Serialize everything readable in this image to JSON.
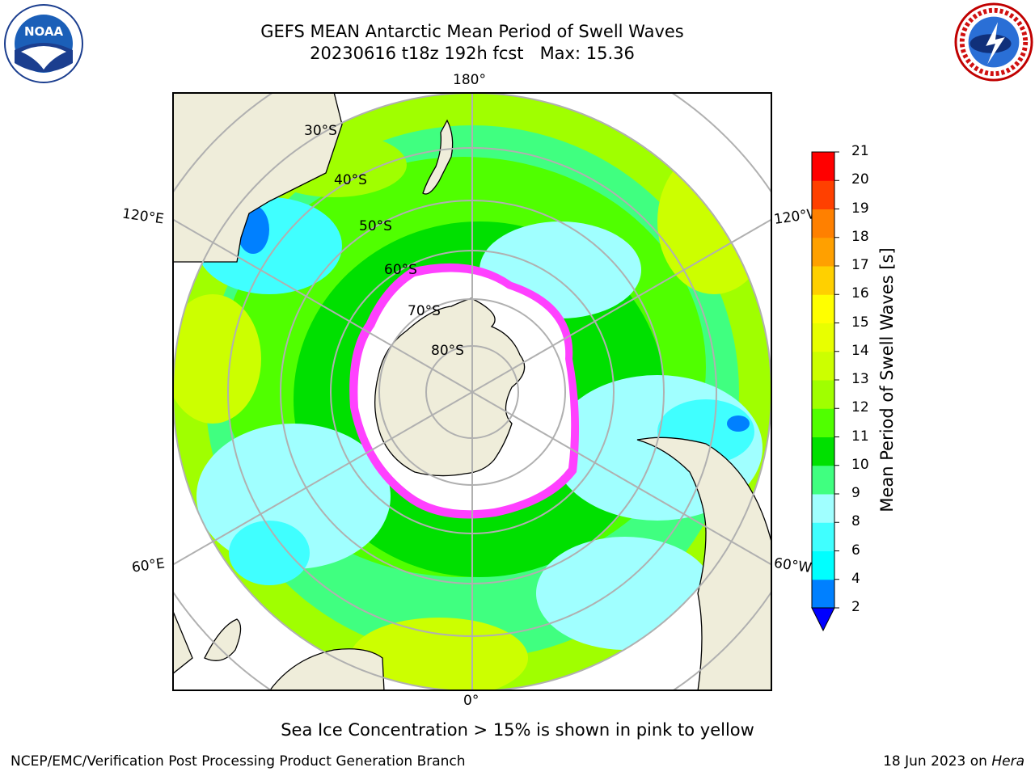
{
  "title_line1": "GEFS MEAN Antarctic Mean Period of Swell Waves",
  "title_line2": "20230616 t18z 192h fcst   Max: 15.36",
  "logos": {
    "left": "noaa-logo",
    "right": "nws-logo"
  },
  "map": {
    "projection": "south polar stereographic",
    "longitude_labels": {
      "top": "180°",
      "bottom": "0°",
      "left_upper": "120°E",
      "left_lower": "60°E",
      "right_upper": "120°W",
      "right_lower": "60°W"
    },
    "latitude_labels": [
      "30°S",
      "40°S",
      "50°S",
      "60°S",
      "70°S",
      "80°S"
    ]
  },
  "colorbar": {
    "label": "Mean Period of Swell Waves [s]",
    "ticks": [
      "2",
      "4",
      "6",
      "8",
      "9",
      "10",
      "11",
      "12",
      "13",
      "14",
      "15",
      "16",
      "17",
      "18",
      "19",
      "20",
      "21"
    ],
    "colors": [
      "#0000ff",
      "#0080ff",
      "#00ffff",
      "#40ffff",
      "#a0ffff",
      "#40ff80",
      "#00e000",
      "#50ff00",
      "#a0ff00",
      "#ccff00",
      "#e8ff00",
      "#ffff00",
      "#ffd000",
      "#ffa000",
      "#ff8000",
      "#ff4000",
      "#ff0000"
    ],
    "extend_color": "#0000ff"
  },
  "subtitle": "Sea Ice Concentration > 15% is shown in pink to yellow",
  "footer_left": "NCEP/EMC/Verification Post Processing Product Generation Branch",
  "footer_right_date": "18 Jun 2023 on ",
  "footer_right_host": "Hera"
}
